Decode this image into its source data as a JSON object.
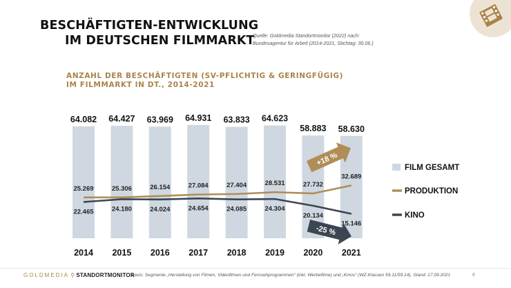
{
  "title": {
    "line1": "BESCHÄFTIGTEN-ENTWICKLUNG",
    "line2": "IM DEUTSCHEN FILMMARKT"
  },
  "source": {
    "line1": "Quelle: Goldmedia Standortmonitor (2022) nach:",
    "line2": "Bundesagentur für Arbeit (2014-2021, Stichtag: 30.06.)"
  },
  "subtitle": {
    "line1": "ANZAHL DER BESCHÄFTIGTEN (SV-PFLICHTIG & GERINGFÜGIG)",
    "line2": "IM FILMMARKT IN DT., 2014-2021"
  },
  "footer": {
    "brand": "GOLDMEDIA",
    "brand2": "STANDORTMONITOR",
    "note": "Basis: Segmente „Herstellung von Filmen, Videofilmen und Fernsehprogrammen“ (inkl. Werbefilme) und „Kinos“ (WZ-Klassen 59.11/59.14). Stand: 17.09.2021",
    "page": "6"
  },
  "colors": {
    "bar": "#cfd8e0",
    "produktion": "#b08d57",
    "kino": "#3c4653",
    "gold": "#a8844a"
  },
  "chart_data": {
    "type": "bar",
    "categories": [
      "2014",
      "2015",
      "2016",
      "2017",
      "2018",
      "2019",
      "2020",
      "2021"
    ],
    "series": [
      {
        "name": "FILM GESAMT",
        "type": "bar",
        "values": [
          64082,
          64427,
          63969,
          64931,
          63833,
          64623,
          58883,
          58630
        ],
        "labels": [
          "64.082",
          "64.427",
          "63.969",
          "64.931",
          "63.833",
          "64.623",
          "58.883",
          "58.630"
        ]
      },
      {
        "name": "PRODUKTION",
        "type": "line",
        "values": [
          25269,
          25306,
          26154,
          27084,
          27404,
          28531,
          27732,
          32689
        ],
        "labels": [
          "25.269",
          "25.306",
          "26.154",
          "27.084",
          "27.404",
          "28.531",
          "27.732",
          "32.689"
        ]
      },
      {
        "name": "KINO",
        "type": "line",
        "values": [
          22465,
          24180,
          24024,
          24654,
          24085,
          24304,
          20134,
          15146
        ],
        "labels": [
          "22.465",
          "24.180",
          "24.024",
          "24.654",
          "24.085",
          "24.304",
          "20.134",
          "15.146"
        ]
      }
    ],
    "annotations": [
      {
        "text": "+18 %",
        "series": "PRODUKTION"
      },
      {
        "text": "-25 %",
        "series": "KINO"
      }
    ],
    "legend": "right",
    "grid": false
  }
}
